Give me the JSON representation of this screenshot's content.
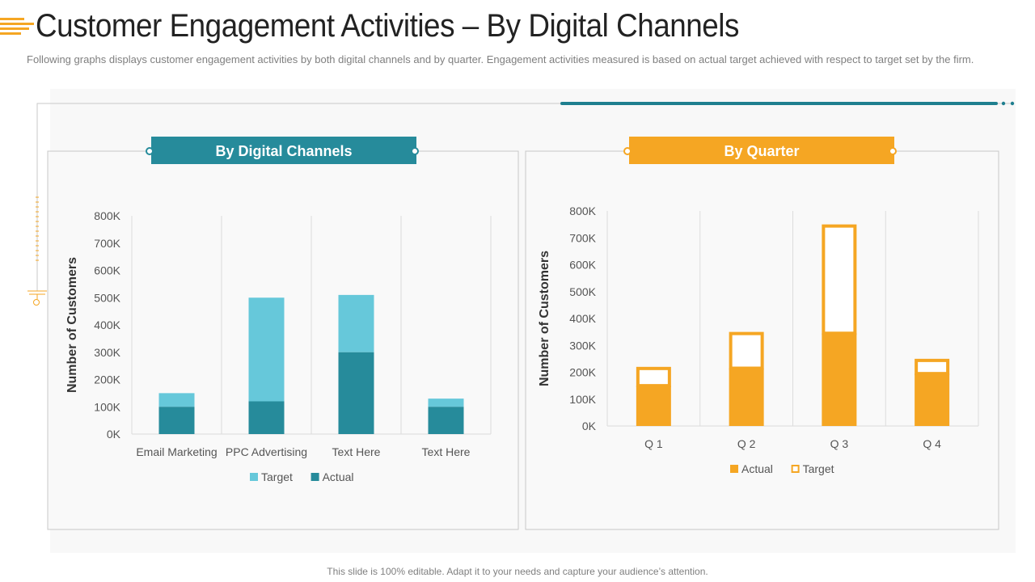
{
  "title": "Customer Engagement Activities – By Digital Channels",
  "subtitle": "Following graphs displays customer engagement activities by both digital channels and by quarter. Engagement activities measured is based on actual target achieved with respect to target set by the firm.",
  "footer": "This slide is 100% editable. Adapt it to your needs and capture your audience’s attention.",
  "colors": {
    "teal": "#268b9b",
    "light_teal": "#66c8da",
    "orange": "#f5a623",
    "accent_line": "#1f7f8f"
  },
  "chart_data": [
    {
      "type": "bar",
      "stacked": true,
      "header": "By Digital Channels",
      "title": "By Digital Channels",
      "xlabel": "",
      "ylabel": "Number of Customers",
      "categories": [
        "Email Marketing",
        "PPC Advertising",
        "Text Here",
        "Text Here"
      ],
      "series": [
        {
          "name": "Actual",
          "values": [
            100000,
            120000,
            300000,
            100000
          ]
        },
        {
          "name": "Target",
          "values": [
            50000,
            380000,
            210000,
            30000
          ]
        }
      ],
      "ylim": [
        0,
        800000
      ],
      "yticks": [
        "0K",
        "100K",
        "200K",
        "300K",
        "400K",
        "500K",
        "600K",
        "700K",
        "800K"
      ],
      "legend": [
        "Target",
        "Actual"
      ],
      "legend_position": "bottom"
    },
    {
      "type": "bar",
      "stacked": true,
      "header": "By Quarter",
      "title": "By Quarter",
      "xlabel": "",
      "ylabel": "Number of Customers",
      "categories": [
        "Q 1",
        "Q 2",
        "Q 3",
        "Q 4"
      ],
      "series": [
        {
          "name": "Actual",
          "values": [
            150000,
            215000,
            345000,
            195000
          ]
        },
        {
          "name": "Target",
          "values": [
            70000,
            135000,
            405000,
            55000
          ]
        }
      ],
      "ylim": [
        0,
        800000
      ],
      "yticks": [
        "0K",
        "100K",
        "200K",
        "300K",
        "400K",
        "500K",
        "600K",
        "700K",
        "800K"
      ],
      "legend": [
        "Actual",
        "Target"
      ],
      "legend_position": "bottom"
    }
  ]
}
